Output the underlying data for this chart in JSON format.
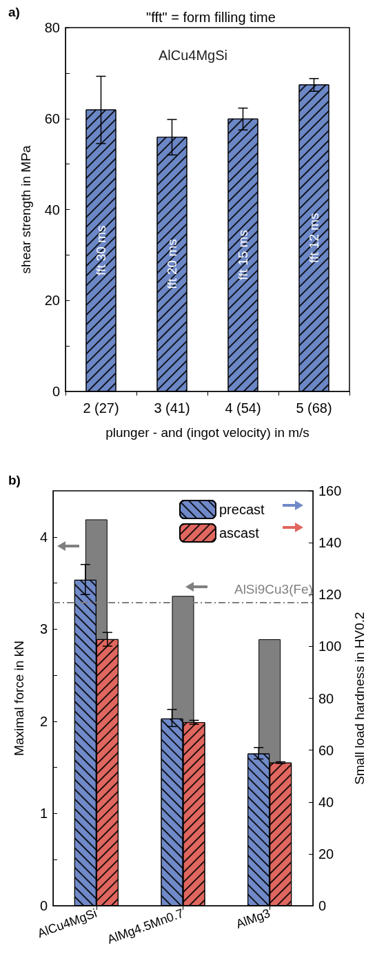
{
  "chart_data": [
    {
      "type": "bar",
      "title": "\"fft\" = form filling time",
      "xlabel": "plunger - and (ingot velocity) in m/s",
      "ylabel": "shear strength in MPa",
      "categories": [
        "2 (27)",
        "3 (41)",
        "4 (54)",
        "5 (68)"
      ],
      "series": [
        {
          "color": "#6c87c6",
          "values": [
            62,
            56,
            60,
            67.5
          ],
          "errors": [
            [
              54.5,
              69.3
            ],
            [
              52,
              59.8
            ],
            [
              57.5,
              62.3
            ],
            [
              66,
              68.8
            ]
          ]
        }
      ],
      "ylim": [
        0,
        80
      ],
      "yticks": [
        0,
        {
          "value": 10,
          "label": null
        },
        20,
        {
          "value": 30,
          "label": null
        },
        40,
        {
          "value": 50,
          "label": null
        },
        60,
        {
          "value": 70,
          "label": null
        },
        80
      ],
      "legend": false,
      "annotations": [
        "a)",
        "AlCu4MgSi",
        "fft 30 ms",
        "fft 20 ms",
        "fft 15 ms",
        "fft 12 ms"
      ]
    },
    {
      "type": "bar",
      "ylabel": "Maximal force in kN",
      "y2label": "Small load hardness in HV0.2",
      "categories": [
        "AlCu4MgSi",
        "AlMg4.5Mn0.7",
        "AlMg3"
      ],
      "series": [
        {
          "name": "precast",
          "color": "#7089c8",
          "axis": "y2",
          "values": [
            125.7,
            72.2,
            58.7
          ],
          "errors": [
            [
              120,
              131.6
            ],
            [
              69.1,
              75.7
            ],
            [
              56.6,
              61
            ]
          ]
        },
        {
          "color": "#808080",
          "axis": "y",
          "values": [
            4.19,
            3.36,
            2.89
          ]
        },
        {
          "name": "ascast",
          "color": "#e0675f",
          "axis": "y2",
          "values": [
            102.8,
            70.8,
            55.2
          ],
          "errors": [
            [
              100.1,
              105.4
            ],
            [
              70,
              71.5
            ],
            [
              54.9,
              55.5
            ]
          ]
        }
      ],
      "ylim": [
        0,
        4.5
      ],
      "yticks": [
        0,
        {
          "value": 0.5,
          "label": null
        },
        1,
        {
          "value": 1.5,
          "label": null
        },
        2,
        {
          "value": 2.5,
          "label": null
        },
        3,
        {
          "value": 3.5,
          "label": null
        },
        4
      ],
      "y2lim": [
        0,
        160
      ],
      "y2ticks": [
        0,
        20,
        40,
        60,
        80,
        100,
        120,
        140,
        160
      ],
      "ref_lines": [
        {
          "axis": "y",
          "value": 3.29,
          "label": "AlSi9Cu3(Fe)",
          "color": "#808080",
          "line_style": "dashdot"
        }
      ],
      "legend": "top right",
      "annotations": [
        "b)"
      ]
    }
  ]
}
